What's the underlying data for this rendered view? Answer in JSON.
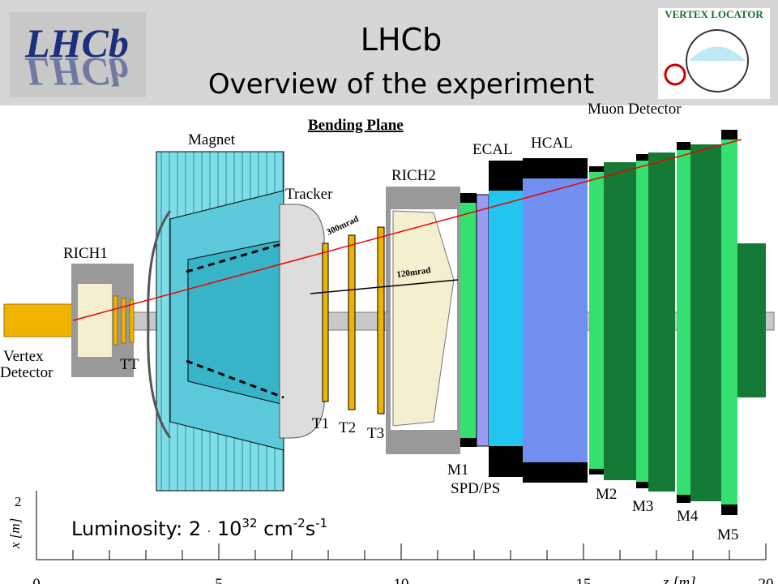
{
  "header": {
    "logo_left": "LHCb",
    "title": "LHCb",
    "subtitle": "Overview of the experiment",
    "logo_right": "VERTEX LOCATOR"
  },
  "diagram": {
    "plane": "Bending Plane",
    "labels": {
      "magnet": "Magnet",
      "muon": "Muon Detector",
      "ecal": "ECAL",
      "hcal": "HCAL",
      "rich2": "RICH2",
      "tracker": "Tracker",
      "rich1": "RICH1",
      "vertex": "Vertex Detector",
      "tt": "TT",
      "t1": "T1",
      "t2": "T2",
      "t3": "T3",
      "m1": "M1",
      "spd": "SPD/PS",
      "m2": "M2",
      "m3": "M3",
      "m4": "M4",
      "m5": "M5"
    },
    "angles": {
      "outer": "300mrad",
      "inner": "120mrad"
    }
  },
  "axis": {
    "x_label": "z [m]",
    "y_label": "x [m]",
    "y_tick": "2",
    "x_ticks": [
      0,
      5,
      10,
      15,
      20
    ]
  },
  "luminosity": {
    "prefix": "Luminosity: 2",
    "dot": "·",
    "base": "10",
    "exp": "32",
    "unit1": "cm",
    "exp1": "-2",
    "unit2": "s",
    "exp2": "-1"
  }
}
